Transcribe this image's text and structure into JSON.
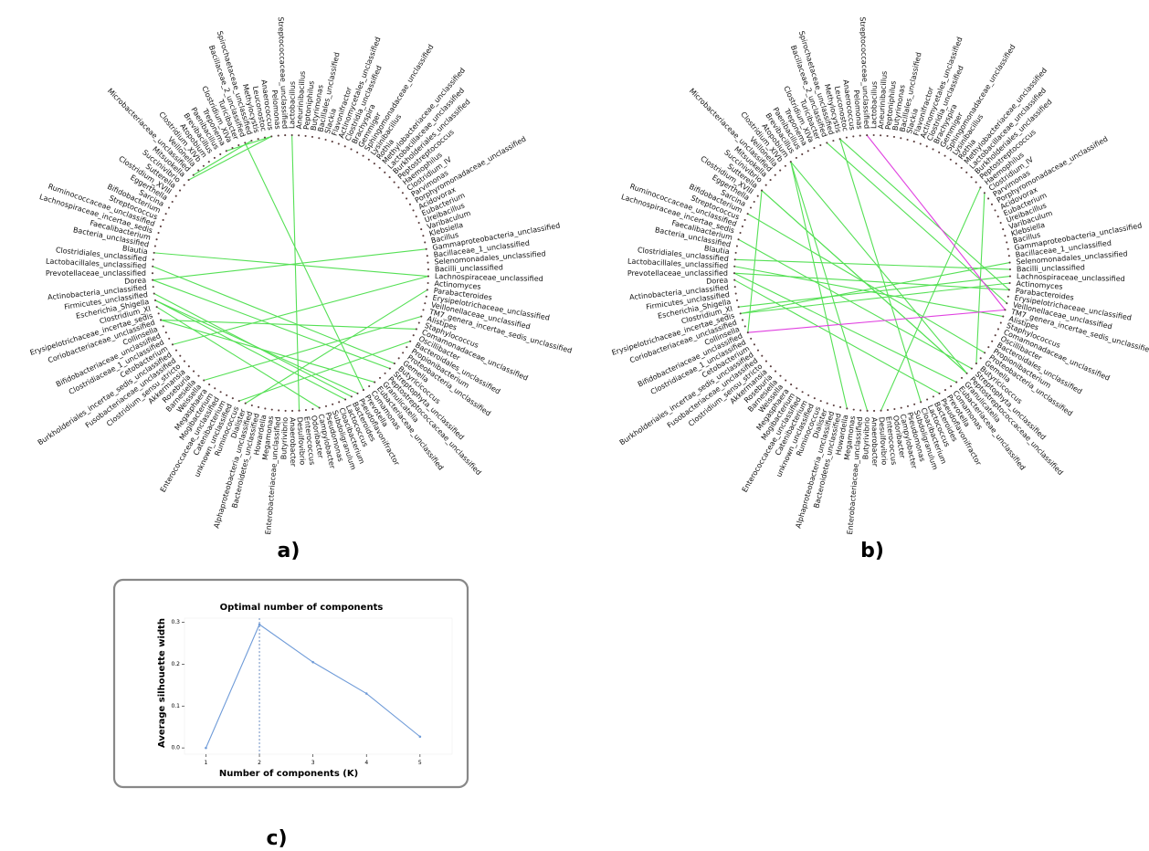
{
  "panel_labels": {
    "a": "a)",
    "b": "b)",
    "c": "c)"
  },
  "taxa": [
    "Gammaproteobacteria_unclassified",
    "Bacillaceae_1_unclassified",
    "Selenomonadales_unclassified",
    "Bacilli_unclassified",
    "Lachnospiraceae_unclassified",
    "Actinomyces",
    "Parabacteroides",
    "Erysipelotrichaceae_unclassified",
    "Veillonellaceae_unclassified",
    "TM7_genera_incertae_sedis_unclassified",
    "Alistipes",
    "Staphylococcus",
    "Comamonadaceae_unclassified",
    "Oscillibacter",
    "Bacteroidales_unclassified",
    "Propionibacterium",
    "Proteobacteria_unclassified",
    "Gemella",
    "Butyricicoccus",
    "Streptophyta_unclassified",
    "Peptostreptococcaceae_unclassified",
    "Granulicatella",
    "Eubacteriaceae_unclassified",
    "Comamonas",
    "Prevotella",
    "Pseudoflavonifractor",
    "Bacteroides",
    "Lactococcus",
    "Cloacibacterium",
    "Subdoligranulum",
    "Pseudomonas",
    "Campylobacter",
    "Odoribacter",
    "Enterococcus",
    "Desulfovibrio",
    "Anaerobacter",
    "Butyrivibrio",
    "Enterobacteriaceae_unclassified",
    "Megamonas",
    "Howardella",
    "Bacteroidetes_unclassified",
    "Alphaproteobacteria_unclassified",
    "Dialister",
    "Ruminococcus",
    "unknown_unclassified",
    "Catenibacterium",
    "Enterococcaceae_unclassified",
    "Mogibacterium",
    "Megasphaera",
    "Weissella",
    "Barnesiella",
    "Roseburia",
    "Akkermansia",
    "Clostridium_sensu_stricto",
    "Fusobacteriaceae_unclassified",
    "Burkholderiales_incertae_sedis_unclassified",
    "Cetobacterium",
    "Clostridiaceae_1_unclassified",
    "Bifidobacteriaceae_unclassified",
    "Collinsella",
    "Coriobacteriaceae_unclassified",
    "Erysipelotrichaceae_incertae_sedis",
    "Clostridium_XI",
    "Escherichia_Shigella",
    "Firmicutes_unclassified",
    "Actinobacteria_unclassified",
    "Dorea",
    "Prevotellaceae_unclassified",
    "Lactobacillales_unclassified",
    "Clostridiales_unclassified",
    "Blautia",
    "Bacteria_unclassified",
    "Faecalibacterium",
    "Lachnospiraceae_incertae_sedis",
    "Ruminococcaceae_unclassified",
    "Streptococcus",
    "Bifidobacterium",
    "Sarcina",
    "Eggerthella",
    "Clostridium_XVIII",
    "Sutterella",
    "Succinivibrio",
    "Mitsuokella",
    "Microbacteriaceae_unclassified",
    "Veillonella",
    "Clostridium_XlVb",
    "Atopobium",
    "Brevibacillus",
    "Paenibacillus",
    "Treponema",
    "Clostridium_XlVa",
    "Turicibacter",
    "Bacillaceae_2_unclassified",
    "Spirochaetaceae_unclassified",
    "Methylocystis",
    "Leuconostoc",
    "Anaerococcus",
    "Pelomonas",
    "Streptococcaceae_unclassified",
    "Lactobacillus",
    "Aneurinibacillus",
    "Peptoniphilus",
    "Butyrimonas",
    "Bacillales_unclassified",
    "Slackia",
    "Flavonifractor",
    "Actinomycetales_unclassified",
    "Clostridia_unclassified",
    "Brachyspira",
    "Gemmiger",
    "Sphingomonadaceae_unclassified",
    "Lysinibacillus",
    "Rothia",
    "Methylobacteriaceae_unclassified",
    "Lactobacillaceae_unclassified",
    "Burkholderiales_unclassified",
    "Peptostreptococcus",
    "Haemophilus",
    "Clostridium_IV",
    "Parvimonas",
    "Porphyromonadaceae_unclassified",
    "Acidovorax",
    "Eubacterium",
    "Ureibacillus",
    "Varibaculum",
    "Klebsiella",
    "Bacillus"
  ],
  "network_a": {
    "edge_color": "#55e055",
    "edges": [
      [
        4,
        70
      ],
      [
        4,
        56
      ],
      [
        6,
        42
      ],
      [
        10,
        49
      ],
      [
        12,
        60
      ],
      [
        14,
        43
      ],
      [
        18,
        68
      ],
      [
        19,
        66
      ],
      [
        22,
        60
      ],
      [
        24,
        92
      ],
      [
        25,
        63
      ],
      [
        26,
        64
      ],
      [
        27,
        63
      ],
      [
        31,
        62
      ],
      [
        93,
        83
      ],
      [
        34,
        99
      ],
      [
        96,
        89
      ],
      [
        96,
        82
      ],
      [
        0,
        66
      ]
    ]
  },
  "network_b": {
    "positive_color": "#55e055",
    "negative_color": "#e040e0",
    "edges": [
      [
        6,
        94
      ],
      [
        8,
        92
      ],
      [
        10,
        68
      ],
      [
        4,
        62
      ],
      [
        3,
        69
      ],
      [
        5,
        61
      ],
      [
        2,
        61
      ],
      [
        22,
        67
      ],
      [
        20,
        80
      ],
      [
        25,
        66
      ],
      [
        28,
        94
      ],
      [
        18,
        118
      ],
      [
        36,
        86
      ],
      [
        16,
        76
      ],
      [
        20,
        86
      ],
      [
        39,
        86
      ],
      [
        58,
        80
      ],
      [
        34,
        117
      ],
      [
        19,
        72
      ],
      [
        20,
        80
      ],
      [
        6,
        67
      ]
    ],
    "negative_edges": [
      [
        9,
        98
      ],
      [
        9,
        58
      ]
    ]
  },
  "chart_data": {
    "type": "line",
    "title": "Optimal number of components",
    "xlabel": "Number of components (K)",
    "ylabel": "Average silhouette width",
    "x": [
      1,
      2,
      3,
      4,
      5
    ],
    "values": [
      0.0,
      0.295,
      0.205,
      0.13,
      0.027
    ],
    "xticks": [
      1,
      2,
      3,
      4,
      5
    ],
    "yticks": [
      0.0,
      0.1,
      0.2,
      0.3
    ],
    "ylim": [
      -0.015,
      0.31
    ],
    "xlim": [
      0.6,
      5.6
    ],
    "optimal_k": 2,
    "line_color": "#6f9bd8",
    "vline_color": "#4a74b4",
    "frame_color": "#888888"
  }
}
